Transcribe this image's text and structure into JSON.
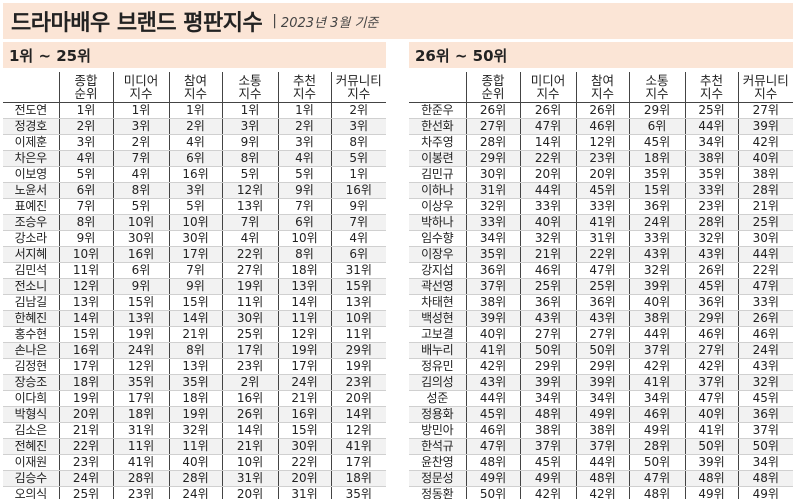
{
  "title": {
    "main": "드라마배우 브랜드 평판지수",
    "separator": "|",
    "date": "2023년 3월 기준"
  },
  "left": {
    "section_title": "1위 ~ 25위",
    "headers": [
      {
        "l1": "",
        "l2": ""
      },
      {
        "l1": "종합",
        "l2": "순위"
      },
      {
        "l1": "미디어",
        "l2": "지수"
      },
      {
        "l1": "참여",
        "l2": "지수"
      },
      {
        "l1": "소통",
        "l2": "지수"
      },
      {
        "l1": "추천",
        "l2": "지수"
      },
      {
        "l1": "커뮤니티",
        "l2": "지수"
      }
    ],
    "rows": [
      [
        "전도연",
        "1위",
        "1위",
        "1위",
        "1위",
        "1위",
        "2위"
      ],
      [
        "정경호",
        "2위",
        "3위",
        "2위",
        "3위",
        "2위",
        "3위"
      ],
      [
        "이제훈",
        "3위",
        "2위",
        "4위",
        "9위",
        "3위",
        "8위"
      ],
      [
        "차은우",
        "4위",
        "7위",
        "6위",
        "8위",
        "4위",
        "5위"
      ],
      [
        "이보영",
        "5위",
        "4위",
        "16위",
        "5위",
        "5위",
        "1위"
      ],
      [
        "노윤서",
        "6위",
        "8위",
        "3위",
        "12위",
        "9위",
        "16위"
      ],
      [
        "표예진",
        "7위",
        "5위",
        "5위",
        "13위",
        "7위",
        "9위"
      ],
      [
        "조승우",
        "8위",
        "10위",
        "10위",
        "7위",
        "6위",
        "7위"
      ],
      [
        "강소라",
        "9위",
        "30위",
        "30위",
        "4위",
        "10위",
        "4위"
      ],
      [
        "서지혜",
        "10위",
        "16위",
        "17위",
        "22위",
        "8위",
        "6위"
      ],
      [
        "김민석",
        "11위",
        "6위",
        "7위",
        "27위",
        "18위",
        "31위"
      ],
      [
        "전소니",
        "12위",
        "9위",
        "9위",
        "19위",
        "13위",
        "15위"
      ],
      [
        "김남길",
        "13위",
        "15위",
        "15위",
        "11위",
        "14위",
        "13위"
      ],
      [
        "한혜진",
        "14위",
        "13위",
        "14위",
        "30위",
        "11위",
        "10위"
      ],
      [
        "홍수현",
        "15위",
        "19위",
        "21위",
        "25위",
        "12위",
        "11위"
      ],
      [
        "손나은",
        "16위",
        "24위",
        "8위",
        "17위",
        "19위",
        "29위"
      ],
      [
        "김정현",
        "17위",
        "12위",
        "13위",
        "23위",
        "17위",
        "19위"
      ],
      [
        "장승조",
        "18위",
        "35위",
        "35위",
        "2위",
        "24위",
        "23위"
      ],
      [
        "이다희",
        "19위",
        "17위",
        "18위",
        "16위",
        "21위",
        "20위"
      ],
      [
        "박형식",
        "20위",
        "18위",
        "19위",
        "26위",
        "16위",
        "14위"
      ],
      [
        "김소은",
        "21위",
        "31위",
        "32위",
        "14위",
        "15위",
        "12위"
      ],
      [
        "전혜진",
        "22위",
        "11위",
        "11위",
        "21위",
        "30위",
        "41위"
      ],
      [
        "이재원",
        "23위",
        "41위",
        "40위",
        "10위",
        "22위",
        "17위"
      ],
      [
        "김승수",
        "24위",
        "28위",
        "28위",
        "31위",
        "20위",
        "18위"
      ],
      [
        "오의식",
        "25위",
        "23위",
        "24위",
        "20위",
        "31위",
        "35위"
      ]
    ]
  },
  "right": {
    "section_title": "26위 ~ 50위",
    "headers": [
      {
        "l1": "",
        "l2": ""
      },
      {
        "l1": "종합",
        "l2": "순위"
      },
      {
        "l1": "미디어",
        "l2": "지수"
      },
      {
        "l1": "참여",
        "l2": "지수"
      },
      {
        "l1": "소통",
        "l2": "지수"
      },
      {
        "l1": "추천",
        "l2": "지수"
      },
      {
        "l1": "커뮤니티",
        "l2": "지수"
      }
    ],
    "rows": [
      [
        "한준우",
        "26위",
        "26위",
        "26위",
        "29위",
        "25위",
        "27위"
      ],
      [
        "한선화",
        "27위",
        "47위",
        "46위",
        "6위",
        "44위",
        "39위"
      ],
      [
        "차주영",
        "28위",
        "14위",
        "12위",
        "45위",
        "34위",
        "42위"
      ],
      [
        "이봉련",
        "29위",
        "22위",
        "23위",
        "18위",
        "38위",
        "40위"
      ],
      [
        "김민규",
        "30위",
        "20위",
        "20위",
        "35위",
        "35위",
        "38위"
      ],
      [
        "이하나",
        "31위",
        "44위",
        "45위",
        "15위",
        "33위",
        "28위"
      ],
      [
        "이상우",
        "32위",
        "33위",
        "33위",
        "36위",
        "23위",
        "21위"
      ],
      [
        "박하나",
        "33위",
        "40위",
        "41위",
        "24위",
        "28위",
        "25위"
      ],
      [
        "임수향",
        "34위",
        "32위",
        "31위",
        "33위",
        "32위",
        "30위"
      ],
      [
        "이장우",
        "35위",
        "21위",
        "22위",
        "43위",
        "43위",
        "44위"
      ],
      [
        "강지섭",
        "36위",
        "46위",
        "47위",
        "32위",
        "26위",
        "22위"
      ],
      [
        "곽선영",
        "37위",
        "25위",
        "25위",
        "39위",
        "45위",
        "47위"
      ],
      [
        "차태현",
        "38위",
        "36위",
        "36위",
        "40위",
        "36위",
        "33위"
      ],
      [
        "백성현",
        "39위",
        "43위",
        "43위",
        "38위",
        "29위",
        "26위"
      ],
      [
        "고보결",
        "40위",
        "27위",
        "27위",
        "44위",
        "46위",
        "46위"
      ],
      [
        "배누리",
        "41위",
        "50위",
        "50위",
        "37위",
        "27위",
        "24위"
      ],
      [
        "정유민",
        "42위",
        "29위",
        "29위",
        "42위",
        "42위",
        "43위"
      ],
      [
        "김의성",
        "43위",
        "39위",
        "39위",
        "41위",
        "37위",
        "32위"
      ],
      [
        "성준",
        "44위",
        "34위",
        "34위",
        "34위",
        "47위",
        "45위"
      ],
      [
        "정용화",
        "45위",
        "48위",
        "49위",
        "46위",
        "40위",
        "36위"
      ],
      [
        "방민아",
        "46위",
        "38위",
        "38위",
        "49위",
        "41위",
        "37위"
      ],
      [
        "한석규",
        "47위",
        "37위",
        "37위",
        "28위",
        "50위",
        "50위"
      ],
      [
        "윤찬영",
        "48위",
        "45위",
        "44위",
        "50위",
        "39위",
        "34위"
      ],
      [
        "정문성",
        "49위",
        "49위",
        "48위",
        "47위",
        "48위",
        "48위"
      ],
      [
        "정동환",
        "50위",
        "42위",
        "42위",
        "48위",
        "49위",
        "49위"
      ]
    ]
  }
}
